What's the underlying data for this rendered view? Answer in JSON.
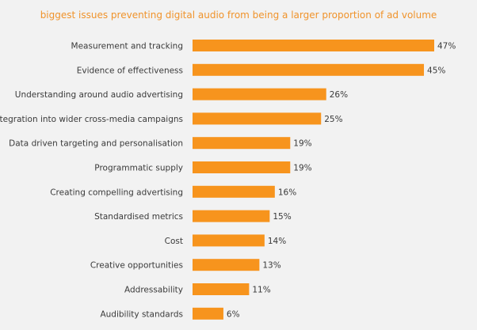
{
  "chart_data": {
    "type": "bar",
    "orientation": "horizontal",
    "title": "biggest issues preventing digital audio from being a larger proportion of ad volume",
    "categories": [
      "Measurement and tracking",
      "Evidence of effectiveness",
      "Understanding around audio advertising",
      "Integration into wider cross-media campaigns",
      "Data driven targeting and personalisation",
      "Programmatic supply",
      "Creating compelling advertising",
      "Standardised metrics",
      "Cost",
      "Creative opportunities",
      "Addressability",
      "Audibility standards"
    ],
    "values": [
      47,
      45,
      26,
      25,
      19,
      19,
      16,
      15,
      14,
      13,
      11,
      6
    ],
    "value_labels": [
      "47%",
      "45%",
      "26%",
      "25%",
      "19%",
      "19%",
      "16%",
      "15%",
      "14%",
      "13%",
      "11%",
      "6%"
    ],
    "xlim": [
      0,
      47
    ],
    "grid": false,
    "legend": "none",
    "colors": {
      "bar": "#f7941d",
      "title": "#f0932b",
      "text": "#3a3a3a",
      "background": "#f2f2f2"
    }
  }
}
